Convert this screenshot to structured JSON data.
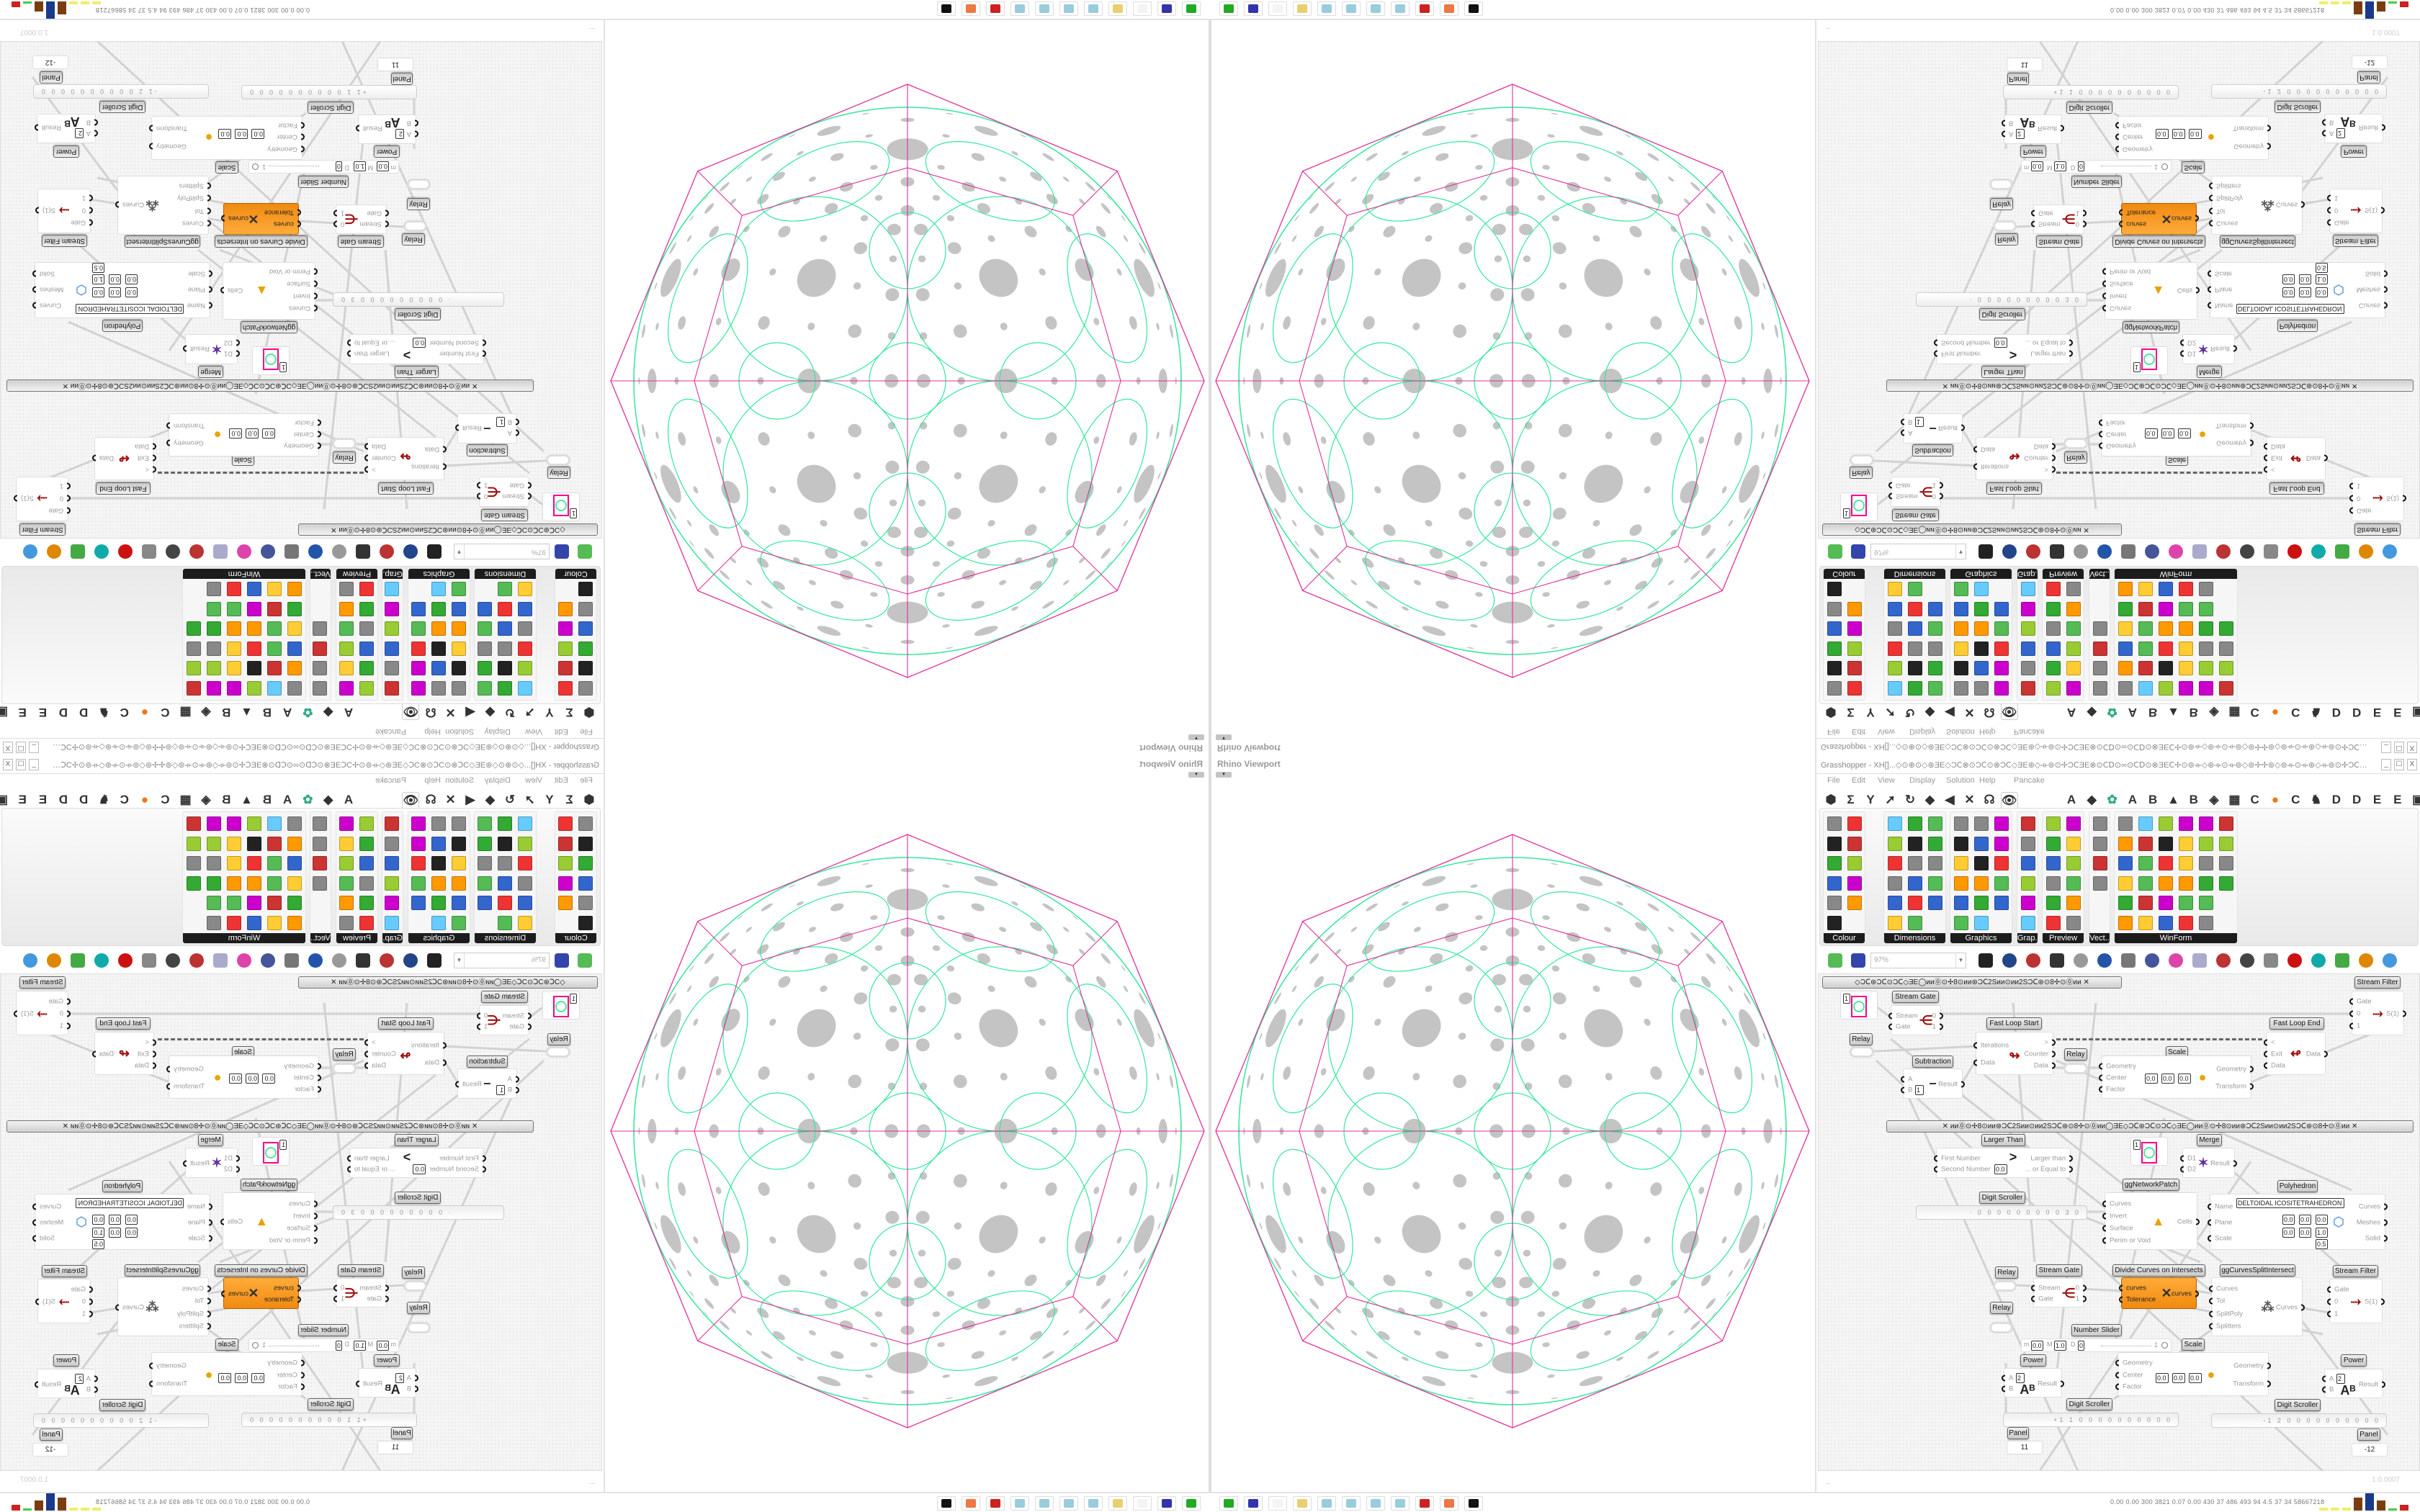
{
  "viewport": {
    "title": "Rhino Viewport",
    "menu_button": "▾"
  },
  "grasshopper": {
    "title": "Grasshopper - XH[]...◇⊙⊕⊙◇⊛ƎE◇ƆⅭ⊗⊙ƆⅭ⊙⊗ƆⅭ◇ƎE⊛◇⟛⊚⊙✢ƆⅭƎE⊗⊙ⅭⅮ⊙∞⊙ⅭⅮ⊙⊗ƎEⅭ✢⊙⊚⟛◇⊛⟛⊙⟛⊚◇⊚✢✢⊚◇⊚⟛⊙⟛⊛◇⟛⊚⊙✢ƆⅭƎE⊗⊙ⅭⅮ⊙∞⊙ⅭⅮ",
    "window_buttons": [
      "_",
      "☐",
      "X"
    ],
    "menu": [
      "File",
      "Edit",
      "View",
      "Display",
      "Solution",
      "Help",
      "Pancake"
    ],
    "tabs": [
      "⬢",
      "Σ",
      "Y",
      "➚",
      "↻",
      "◆",
      "◀",
      "✕",
      "☊",
      "👁",
      "A",
      "◆",
      "✿",
      "A",
      "B",
      "▲",
      "B",
      "◈",
      "▦",
      "C",
      "●",
      "C",
      "♞",
      "D",
      "D",
      "E",
      "E",
      "▣"
    ],
    "selected_tab": 9,
    "ribbon_panels": [
      "Colour",
      "Dimensions",
      "Graphics",
      "Grap..",
      "Preview",
      "Vect..",
      "WinForm"
    ],
    "zoom_level": "97%",
    "status_left": "...",
    "version": "1.0.0007"
  },
  "canvas": {
    "groups": [
      "◇ƆⅭ⊛ƆⅭ⊙ƆⅭ◇ƎE◯ᴎᴎ⓪⊙✢8⊙ᴎᴎ⊛ƆⅭ2Sᴎᴎ⊙ᴎᴎ2SƆⅭ⊛⊙8✢⊙⓪ᴎᴎ     ✕",
      "✕     ᴎᴎ⓪⊙✢8⊙ᴎᴎ⊛ƆⅭ2Sᴎᴎ⊙ᴎᴎ2SƆⅭ⊛⊙8✢⊙⓪ᴎᴎ◯ƎE◇ƆⅭ⊛ƆⅭ⊙ƆⅭ◇ƎE◯ᴎᴎ⓪⊙✢8⊙ᴎᴎ⊛ƆⅭ2Sᴎᴎ⊙ᴎᴎ2SƆⅭ⊛⊙8✢⊙⓪ᴎᴎ     ✕"
    ],
    "components": [
      {
        "title": "Stream Filter",
        "inputs": [
          "Gate",
          "0",
          "1"
        ],
        "outputs": [
          "S(1)"
        ]
      },
      {
        "title": "Stream Gate",
        "inputs": [
          "Stream",
          "Gate"
        ],
        "outputs": [
          "0",
          "1"
        ]
      },
      {
        "title": "Fast Loop Start",
        "inputs": [
          "Iterations",
          "Data"
        ],
        "outputs": [
          ">",
          "Counter",
          "Data"
        ]
      },
      {
        "title": "Fast Loop End",
        "inputs": [
          "<",
          "Exit",
          "Data"
        ],
        "outputs": [
          "Data"
        ]
      },
      {
        "title": "Scale",
        "inputs": [
          "Geometry",
          "Center",
          "Factor"
        ],
        "outputs": [
          "Geometry",
          "Transform"
        ],
        "fields": {
          "x": "0.0",
          "y": "0.0",
          "z": "0.0"
        }
      },
      {
        "title": "Subtraction",
        "inputs": [
          "A",
          "B"
        ],
        "outputs": [
          "Result"
        ],
        "fields": {
          "b": "1"
        }
      },
      {
        "title": "Larger Than",
        "inputs": [
          "First Number",
          "Second Number"
        ],
        "outputs": [
          "Larger than",
          "... or Equal to"
        ],
        "fields": {
          "second": "0.0"
        }
      },
      {
        "title": "Merge",
        "inputs": [
          "D1",
          "D2"
        ],
        "outputs": [
          "Result"
        ]
      },
      {
        "title": "ggNetworkPatch",
        "inputs": [
          "Curves",
          "Invert",
          "Surface",
          "Perim or Void"
        ],
        "outputs": [
          "Cells"
        ]
      },
      {
        "title": "Polyhedron",
        "inputs": [
          "Name",
          "Plane",
          "Scale"
        ],
        "outputs": [
          "Curves",
          "Meshes",
          "Solid"
        ],
        "fields": {
          "name": "DELTOIDAL ICOSITETRAHEDRON",
          "ox": "0.0",
          "oy": "0.0",
          "oz": "0.0",
          "zx": "0.0",
          "zy": "0.0",
          "zz": "1.0",
          "scale": "0.5"
        }
      },
      {
        "title": "Stream Gate",
        "inputs": [
          "Stream",
          "Gate"
        ],
        "outputs": [
          "0",
          "1"
        ]
      },
      {
        "title": "Divide Curves on Intersects",
        "inputs": [
          "curves",
          "Tolerance"
        ],
        "outputs": [
          "curves"
        ]
      },
      {
        "title": "ggCurvesSplitIntersect",
        "inputs": [
          "Curves",
          "Tol",
          "SplitPoly",
          "Splitters"
        ],
        "outputs": [
          "Curves"
        ]
      },
      {
        "title": "Stream Filter",
        "inputs": [
          "Gate",
          "0",
          "1"
        ],
        "outputs": [
          "S(1)"
        ]
      },
      {
        "title": "Scale",
        "inputs": [
          "Geometry",
          "Center",
          "Factor"
        ],
        "outputs": [
          "Geometry",
          "Transform"
        ],
        "fields": {
          "x": "0.0",
          "y": "0.0",
          "z": "0.0"
        }
      },
      {
        "title": "Power",
        "inputs": [
          "A",
          "B"
        ],
        "outputs": [
          "Result"
        ],
        "fields": {
          "a": "2"
        }
      },
      {
        "title": "Power",
        "inputs": [
          "A",
          "B"
        ],
        "outputs": [
          "Result"
        ],
        "fields": {
          "a": "2"
        }
      }
    ],
    "relay_label": "Relay",
    "param_values": [
      "1",
      "1"
    ],
    "digit_scrollers": [
      {
        "title": "Digit Scroller",
        "value": "· 0 0 0 0 0 0 0 0 0 3 0"
      },
      {
        "title": "Digit Scroller",
        "value": "+1 1 0 0 0 0 0 0 0 0 0 0"
      },
      {
        "title": "Digit Scroller",
        "value": "-1 2 0 0 0 0 0 0 0 0 0 0"
      }
    ],
    "number_slider": {
      "title": "Number Slider",
      "min_label": "m",
      "min": "0.0",
      "max_label": "M",
      "max": "1.0",
      "dec_label": "D",
      "decimals": "0",
      "value": "1"
    },
    "panels": [
      {
        "title": "Panel",
        "value": "11"
      },
      {
        "title": "Panel",
        "value": "-12"
      }
    ]
  },
  "taskbar": {
    "apps": [
      "terminal-icon",
      "floppy-64-icon",
      "blank-icon",
      "folder-icon",
      "notepad-icon",
      "notepad-icon",
      "notepad-icon",
      "notepad-icon",
      "red-app-icon",
      "firefox-icon",
      "black-app-icon"
    ],
    "system_stats": "0.00  0.00  300  3821  0.07  0.00  430   37   486   493   94   4.5   37   34   58667218",
    "colors": {
      "magenta": "#e0309a",
      "green": "#33e89a",
      "dots": "#c4c4c4",
      "orange": "#f39218"
    }
  }
}
